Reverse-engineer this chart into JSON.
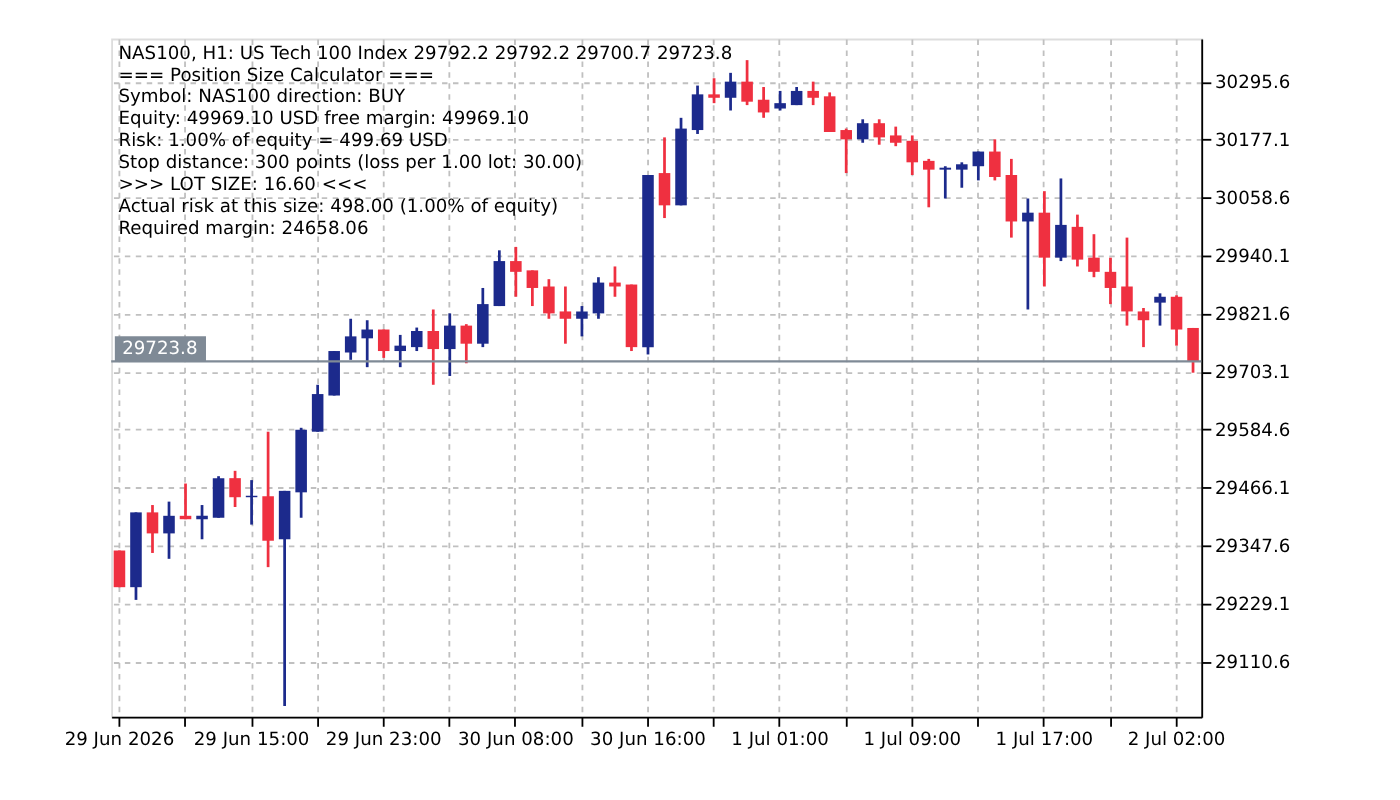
{
  "chart_data": {
    "type": "candlestick",
    "title": "NAS100, H1:  US Tech 100 Index  29792.2 29792.2 29700.7 29723.8",
    "annotations": [
      "=== Position Size Calculator ===",
      "Symbol: NAS100   direction: BUY",
      "Equity: 49969.10 USD   free margin: 49969.10",
      "Risk: 1.00% of equity = 499.69 USD",
      "Stop distance: 300 points (loss per 1.00 lot: 30.00)",
      ">>> LOT SIZE: 16.60 <<<",
      "Actual risk at this size: 498.00 (1.00% of equity)",
      "Required margin: 24658.06"
    ],
    "categories": [
      "29 Jun 2026",
      null,
      null,
      null,
      null,
      null,
      null,
      null,
      "29 Jun 15:00",
      null,
      null,
      null,
      null,
      null,
      null,
      null,
      "29 Jun 23:00",
      null,
      null,
      null,
      null,
      null,
      null,
      null,
      "30 Jun 08:00",
      null,
      null,
      null,
      null,
      null,
      null,
      null,
      "30 Jun 16:00",
      null,
      null,
      null,
      null,
      null,
      null,
      null,
      "1 Jul 01:00",
      null,
      null,
      null,
      null,
      null,
      null,
      null,
      "1 Jul 09:00",
      null,
      null,
      null,
      null,
      null,
      null,
      null,
      "1 Jul 17:00",
      null,
      null,
      null,
      null,
      null,
      null,
      null,
      "2 Jul 02:00",
      null
    ],
    "ohlc": [
      [
        29337,
        29337,
        29262,
        29262
      ],
      [
        29262,
        29415,
        29236,
        29415
      ],
      [
        29415,
        29430,
        29332,
        29372
      ],
      [
        29372,
        29437,
        29320,
        29408
      ],
      [
        29408,
        29474,
        29401,
        29401
      ],
      [
        29401,
        29430,
        29360,
        29408
      ],
      [
        29404,
        29489,
        29404,
        29485
      ],
      [
        29485,
        29500,
        29426,
        29446
      ],
      [
        29446,
        29481,
        29390,
        29449
      ],
      [
        29448,
        29580,
        29303,
        29357
      ],
      [
        29360,
        29459,
        29019,
        29459
      ],
      [
        29456,
        29588,
        29404,
        29584
      ],
      [
        29580,
        29676,
        29580,
        29657
      ],
      [
        29654,
        29745,
        29654,
        29745
      ],
      [
        29742,
        29811,
        29727,
        29775
      ],
      [
        29771,
        29808,
        29712,
        29789
      ],
      [
        29789,
        29789,
        29731,
        29745
      ],
      [
        29745,
        29778,
        29712,
        29756
      ],
      [
        29753,
        29793,
        29745,
        29786
      ],
      [
        29786,
        29830,
        29676,
        29749
      ],
      [
        29749,
        29822,
        29694,
        29797
      ],
      [
        29797,
        29800,
        29720,
        29760
      ],
      [
        29760,
        29874,
        29753,
        29841
      ],
      [
        29837,
        29951,
        29837,
        29929
      ],
      [
        29929,
        29958,
        29856,
        29907
      ],
      [
        29910,
        29910,
        29837,
        29874
      ],
      [
        29877,
        29892,
        29811,
        29822
      ],
      [
        29826,
        29877,
        29760,
        29811
      ],
      [
        29811,
        29837,
        29775,
        29826
      ],
      [
        29822,
        29896,
        29811,
        29885
      ],
      [
        29885,
        29918,
        29856,
        29877
      ],
      [
        29881,
        29881,
        29745,
        29753
      ],
      [
        29753,
        30105,
        29738,
        30105
      ],
      [
        30109,
        30182,
        30017,
        30043
      ],
      [
        30043,
        30222,
        30043,
        30200
      ],
      [
        30197,
        30288,
        30189,
        30270
      ],
      [
        30270,
        30303,
        30252,
        30263
      ],
      [
        30263,
        30314,
        30237,
        30296
      ],
      [
        30296,
        30340,
        30248,
        30255
      ],
      [
        30259,
        30285,
        30222,
        30233
      ],
      [
        30241,
        30277,
        30237,
        30252
      ],
      [
        30248,
        30285,
        30248,
        30277
      ],
      [
        30277,
        30296,
        30248,
        30263
      ],
      [
        30266,
        30274,
        30193,
        30193
      ],
      [
        30197,
        30200,
        30109,
        30178
      ],
      [
        30178,
        30219,
        30171,
        30211
      ],
      [
        30211,
        30219,
        30167,
        30182
      ],
      [
        30186,
        30204,
        30164,
        30171
      ],
      [
        30175,
        30186,
        30105,
        30131
      ],
      [
        30134,
        30138,
        30039,
        30116
      ],
      [
        30116,
        30123,
        30057,
        30120
      ],
      [
        30116,
        30131,
        30079,
        30127
      ],
      [
        30123,
        30153,
        30094,
        30153
      ],
      [
        30153,
        30178,
        30094,
        30101
      ],
      [
        30105,
        30138,
        29977,
        30010
      ],
      [
        30010,
        30057,
        29830,
        30028
      ],
      [
        30028,
        30072,
        29877,
        29936
      ],
      [
        29936,
        30098,
        29929,
        30003
      ],
      [
        29999,
        30024,
        29918,
        29932
      ],
      [
        29936,
        29984,
        29896,
        29907
      ],
      [
        29907,
        29936,
        29841,
        29874
      ],
      [
        29877,
        29977,
        29797,
        29826
      ],
      [
        29826,
        29833,
        29753,
        29808
      ],
      [
        29844,
        29863,
        29797,
        29856
      ],
      [
        29856,
        29859,
        29756,
        29789
      ],
      [
        29792.2,
        29792.2,
        29700.7,
        29723.8
      ]
    ],
    "colors": [
      "#ef3040",
      "#1c2a8c",
      "#ef3040",
      "#1c2a8c",
      "#ef3040",
      "#1c2a8c",
      "#1c2a8c",
      "#ef3040",
      "#1c2a8c",
      "#ef3040",
      "#1c2a8c",
      "#1c2a8c",
      "#1c2a8c",
      "#1c2a8c",
      "#1c2a8c",
      "#1c2a8c",
      "#ef3040",
      "#1c2a8c",
      "#1c2a8c",
      "#ef3040",
      "#1c2a8c",
      "#ef3040",
      "#1c2a8c",
      "#1c2a8c",
      "#ef3040",
      "#ef3040",
      "#ef3040",
      "#ef3040",
      "#1c2a8c",
      "#1c2a8c",
      "#ef3040",
      "#ef3040",
      "#1c2a8c",
      "#ef3040",
      "#1c2a8c",
      "#1c2a8c",
      "#ef3040",
      "#1c2a8c",
      "#ef3040",
      "#ef3040",
      "#1c2a8c",
      "#1c2a8c",
      "#ef3040",
      "#ef3040",
      "#ef3040",
      "#1c2a8c",
      "#ef3040",
      "#ef3040",
      "#ef3040",
      "#ef3040",
      "#1c2a8c",
      "#1c2a8c",
      "#1c2a8c",
      "#ef3040",
      "#ef3040",
      "#1c2a8c",
      "#ef3040",
      "#1c2a8c",
      "#ef3040",
      "#ef3040",
      "#ef3040",
      "#ef3040",
      "#ef3040",
      "#1c2a8c",
      "#ef3040",
      "#ef3040"
    ],
    "ylim": [
      28997,
      30384
    ],
    "yticks": [
      29110.6,
      29229.1,
      29347.6,
      29466.1,
      29584.6,
      29703.1,
      29821.6,
      29940.1,
      30058.6,
      30177.1,
      30295.6
    ],
    "ref_lines": [
      {
        "axis": "y",
        "value": 29723.8,
        "label": "29723.8",
        "color": "#7f8a96"
      }
    ],
    "grid": true
  }
}
